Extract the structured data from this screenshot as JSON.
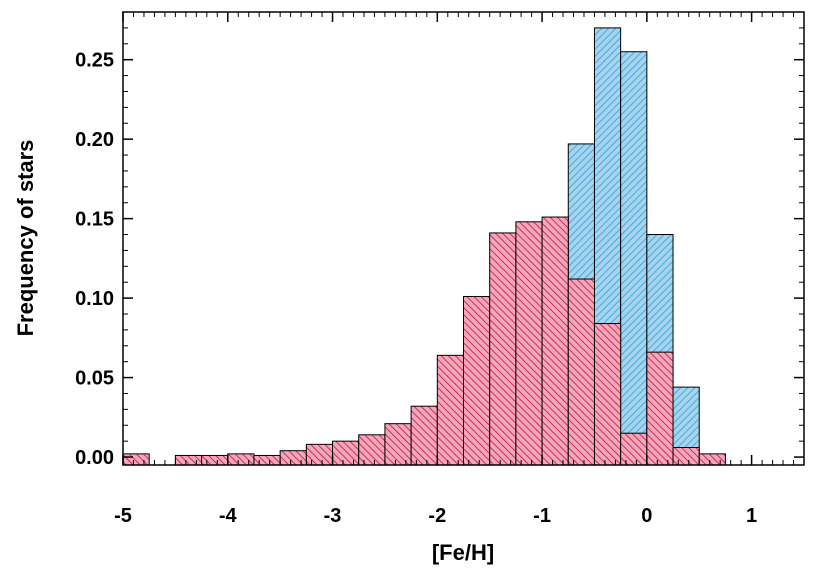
{
  "chart_data": {
    "type": "bar",
    "title": "",
    "xlabel": "[Fe/H]",
    "ylabel": "Frequency of stars",
    "xlim": [
      -5.0,
      1.5
    ],
    "ylim": [
      -0.005,
      0.28
    ],
    "x_ticks": [
      "-5",
      "-4",
      "-3",
      "-2",
      "-1",
      "0",
      "1"
    ],
    "x_tick_values": [
      -5,
      -4,
      -3,
      -2,
      -1,
      0,
      1
    ],
    "y_ticks": [
      "0.00",
      "0.05",
      "0.10",
      "0.15",
      "0.20",
      "0.25"
    ],
    "y_tick_values": [
      0.0,
      0.05,
      0.1,
      0.15,
      0.2,
      0.25
    ],
    "bin_width": 0.25,
    "series": [
      {
        "color": "#2f9fd8",
        "hatch": "hatched",
        "bins": [
          {
            "x0": -1.5,
            "value": 0.001
          },
          {
            "x0": -1.25,
            "value": 0.004
          },
          {
            "x0": -1.0,
            "value": 0.053
          },
          {
            "x0": -0.75,
            "value": 0.197
          },
          {
            "x0": -0.5,
            "value": 0.27
          },
          {
            "x0": -0.25,
            "value": 0.255
          },
          {
            "x0": 0.0,
            "value": 0.14
          },
          {
            "x0": 0.25,
            "value": 0.044
          }
        ]
      },
      {
        "color": "#c8103e",
        "hatch": "hatched",
        "bins": [
          {
            "x0": -5.0,
            "value": 0.002
          },
          {
            "x0": -4.5,
            "value": 0.001
          },
          {
            "x0": -4.25,
            "value": 0.001
          },
          {
            "x0": -4.0,
            "value": 0.002
          },
          {
            "x0": -3.75,
            "value": 0.001
          },
          {
            "x0": -3.5,
            "value": 0.004
          },
          {
            "x0": -3.25,
            "value": 0.008
          },
          {
            "x0": -3.0,
            "value": 0.01
          },
          {
            "x0": -2.75,
            "value": 0.014
          },
          {
            "x0": -2.5,
            "value": 0.021
          },
          {
            "x0": -2.25,
            "value": 0.032
          },
          {
            "x0": -2.0,
            "value": 0.064
          },
          {
            "x0": -1.75,
            "value": 0.101
          },
          {
            "x0": -1.5,
            "value": 0.141
          },
          {
            "x0": -1.25,
            "value": 0.148
          },
          {
            "x0": -1.0,
            "value": 0.151
          },
          {
            "x0": -0.75,
            "value": 0.112
          },
          {
            "x0": -0.5,
            "value": 0.084
          },
          {
            "x0": -0.25,
            "value": 0.015
          },
          {
            "x0": 0.0,
            "value": 0.066
          },
          {
            "x0": 0.25,
            "value": 0.006
          },
          {
            "x0": 0.5,
            "value": 0.002
          }
        ]
      }
    ]
  }
}
